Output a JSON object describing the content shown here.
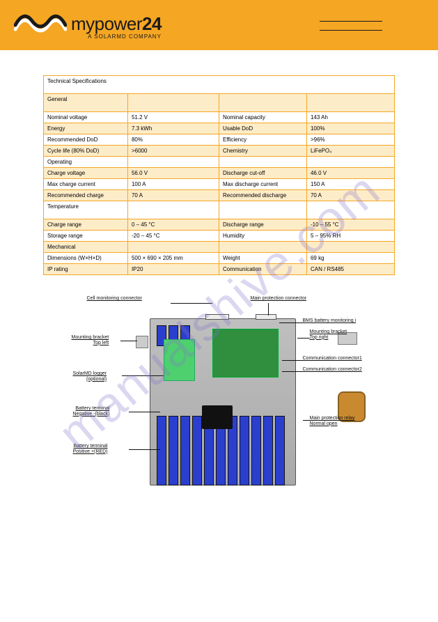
{
  "watermark": "manualshive.com",
  "logo": {
    "main_light": "mypower",
    "main_bold": "24",
    "sub": "A SOLARMD COMPANY"
  },
  "table": {
    "title": "Technical Specifications",
    "col_widths_pct": [
      24,
      26,
      25,
      25
    ],
    "rows": [
      {
        "tall": true,
        "cells": [
          "General",
          "",
          "",
          ""
        ]
      },
      {
        "cells": [
          "Nominal voltage",
          "51.2 V",
          "Nominal capacity",
          "143 Ah"
        ]
      },
      {
        "cells": [
          "Energy",
          "7.3 kWh",
          "Usable DoD",
          "100%"
        ]
      },
      {
        "cells": [
          "Recommended DoD",
          "80%",
          "Efficiency",
          ">96%"
        ]
      },
      {
        "cells": [
          "Cycle life (80% DoD)",
          ">6000",
          "Chemistry",
          "LiFePO₄"
        ]
      },
      {
        "cells": [
          "Operating",
          "",
          "",
          ""
        ]
      },
      {
        "cells": [
          "Charge voltage",
          "56.0 V",
          "Discharge cut-off",
          "46.0 V"
        ]
      },
      {
        "cells": [
          "Max charge current",
          "100 A",
          "Max discharge current",
          "150 A"
        ]
      },
      {
        "cells": [
          "Recommended charge",
          "70 A",
          "Recommended discharge",
          "70 A"
        ]
      },
      {
        "tall": true,
        "cells": [
          "Temperature",
          "",
          "",
          ""
        ]
      },
      {
        "cells": [
          "Charge range",
          "0 – 45 °C",
          "Discharge range",
          "-10 – 55 °C"
        ]
      },
      {
        "cells": [
          "Storage range",
          "-20 – 45 °C",
          "Humidity",
          "5 – 95% RH"
        ]
      },
      {
        "cells": [
          "Mechanical",
          "",
          "",
          ""
        ]
      },
      {
        "cells": [
          "Dimensions (W×H×D)",
          "500 × 690 × 205 mm",
          "Weight",
          "69 kg"
        ]
      },
      {
        "cells": [
          "IP rating",
          "IP20",
          "Communication",
          "CAN / RS485"
        ]
      }
    ]
  },
  "diagram": {
    "callouts": {
      "cell_mon": "Cell monitoring connector",
      "main_prot_conn": "Main protection connector",
      "bms": "BMS battery monitoring i",
      "bracket_r1": "Mounting bracket",
      "bracket_r2": "Top right",
      "bracket_l1": "Mounting bracket",
      "bracket_l2": "Top left",
      "comm1": "Communication connector1",
      "comm2": "Communication connector2",
      "logger1": "SolarMD logger",
      "logger2": "(optional)",
      "neg1": "Battery terminal",
      "neg2": "Negative -(black)",
      "pos1": "Battery terminal",
      "pos2": "Positive +(RED)",
      "relay1": "Main protection relay",
      "relay2": "Normal open"
    }
  }
}
